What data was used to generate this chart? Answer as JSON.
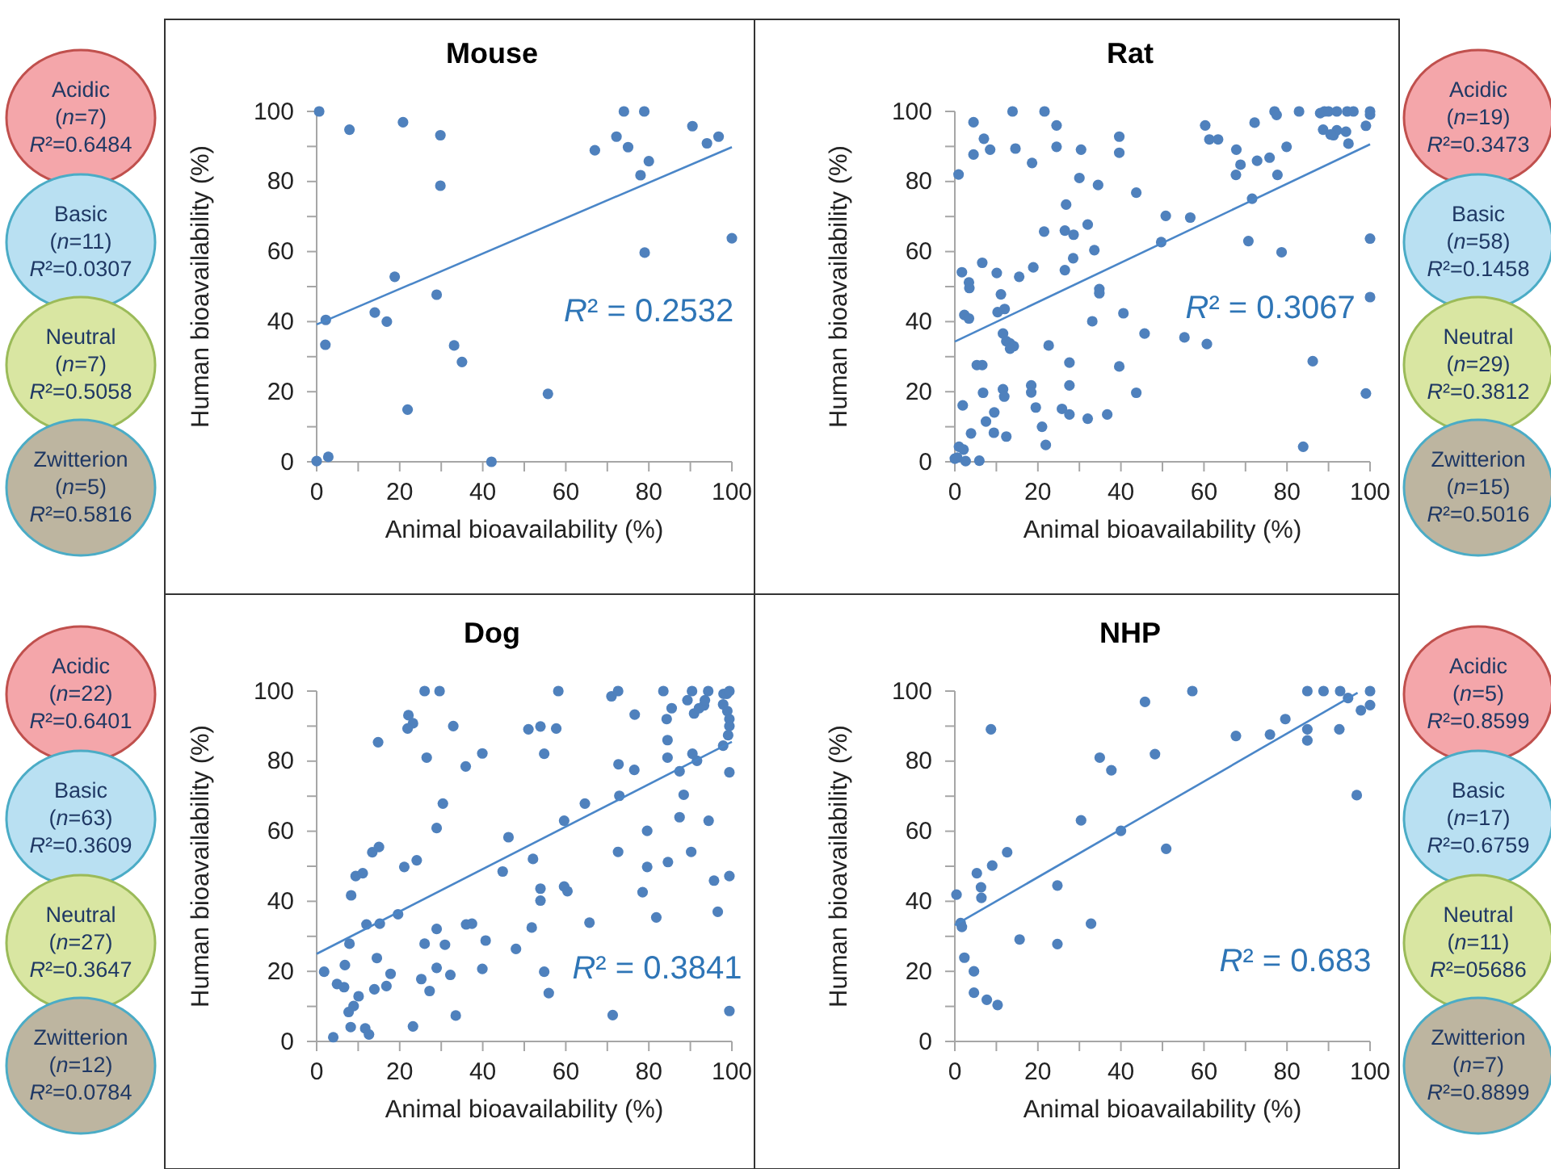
{
  "chart_data": [
    {
      "type": "scatter",
      "title": "Mouse",
      "xlabel": "Animal bioavailability (%)",
      "ylabel": "Human bioavailability (%)",
      "xlim": [
        0,
        100
      ],
      "ylim": [
        0,
        100
      ],
      "xticks": [
        0,
        {
          "value": 10,
          "label": null
        },
        20,
        {
          "value": 30,
          "label": null
        },
        40,
        {
          "value": 50,
          "label": null
        },
        60,
        {
          "value": 70,
          "label": null
        },
        80,
        {
          "value": 90,
          "label": null
        },
        100
      ],
      "yticks": [
        0,
        {
          "value": 10,
          "label": null
        },
        20,
        {
          "value": 30,
          "label": null
        },
        40,
        {
          "value": 50,
          "label": null
        },
        60,
        {
          "value": 70,
          "label": null
        },
        80,
        {
          "value": 90,
          "label": null
        },
        100
      ],
      "marker": "circle",
      "grid": false,
      "series": [
        {
          "color": "#4f81bd",
          "x": [
            0.6,
            7.9,
            20.8,
            29.8,
            29.8,
            67,
            72.2,
            74,
            75,
            78.9,
            80,
            78,
            79,
            90.5,
            94,
            96.8,
            100,
            18.8,
            14,
            16.9,
            2.2,
            2.1,
            28.9,
            33.1,
            35,
            21.9,
            55.7,
            0,
            2.8,
            42.1
          ],
          "values": [
            100,
            94.8,
            96.9,
            93.2,
            78.8,
            88.9,
            92.8,
            100,
            89.8,
            100,
            85.8,
            81.8,
            59.7,
            95.8,
            90.9,
            92.8,
            63.8,
            52.8,
            42.6,
            40,
            40.5,
            33.4,
            47.7,
            33.2,
            28.5,
            14.9,
            19.4,
            0.2,
            1.4,
            0
          ]
        },
        {
          "type": "line",
          "color": "#4a86c8",
          "line_style": "solid",
          "marker": "none",
          "x": [
            0,
            100
          ],
          "values": [
            39.2,
            89.8
          ]
        }
      ],
      "annotations": [
        "R² = 0.2532",
        "Acidic (n=7) R²=0.6484",
        "Basic (n=11) R²=0.0307",
        "Neutral (n=7) R²=0.5058",
        "Zwitterion (n=5) R²=0.5816"
      ]
    },
    {
      "type": "scatter",
      "title": "Rat",
      "xlabel": "Animal bioavailability (%)",
      "ylabel": "Human bioavailability (%)",
      "xlim": [
        0,
        100
      ],
      "ylim": [
        0,
        100
      ],
      "xticks": [
        0,
        {
          "value": 10,
          "label": null
        },
        20,
        {
          "value": 30,
          "label": null
        },
        40,
        {
          "value": 50,
          "label": null
        },
        60,
        {
          "value": 70,
          "label": null
        },
        80,
        {
          "value": 90,
          "label": null
        },
        100
      ],
      "yticks": [
        0,
        {
          "value": 10,
          "label": null
        },
        20,
        {
          "value": 30,
          "label": null
        },
        40,
        {
          "value": 50,
          "label": null
        },
        60,
        {
          "value": 70,
          "label": null
        },
        80,
        {
          "value": 90,
          "label": null
        },
        100
      ],
      "marker": "circle",
      "grid": false,
      "series": [
        {
          "color": "#4f81bd",
          "x": [
            13.9,
            21.6,
            77,
            77.5,
            82.9,
            88,
            89,
            90,
            92,
            94.5,
            96,
            100,
            4.5,
            0.9,
            7,
            4.5,
            8.5,
            14.6,
            18.6,
            24.5,
            24.5,
            30.4,
            30,
            34.5,
            39.6,
            39.6,
            43.7,
            26.8,
            21.5,
            26.5,
            28.6,
            32,
            33.6,
            28.5,
            26.5,
            18.9,
            15.5,
            6.6,
            10.1,
            1.7,
            3.4,
            3.5,
            11.1,
            34.8,
            34.8,
            10.3,
            12,
            2.3,
            3.4,
            11.6,
            12.4,
            13.3,
            14.2,
            13.3,
            22.6,
            33.1,
            40.6,
            49.7,
            50.8,
            56.7,
            45.7,
            55.3,
            60.7,
            60.3,
            61.3,
            63.4,
            72.2,
            67.8,
            68.8,
            67.7,
            72.8,
            75.8,
            77.7,
            79.9,
            71.6,
            70.7,
            78.7,
            88.7,
            91.2,
            92,
            90.5,
            94.2,
            94.8,
            99,
            100,
            100,
            100,
            99,
            86.2,
            83.9,
            5.3,
            6.6,
            1.9,
            6.8,
            11.6,
            11.9,
            3.9,
            7.5,
            9.5,
            9.4,
            12.4,
            18.4,
            18.4,
            19.5,
            21,
            21.9,
            27.6,
            27.6,
            25.8,
            27.6,
            32,
            36.7,
            39.6,
            43.7,
            1,
            2.1,
            0,
            0.6,
            2.6,
            5.9
          ],
          "values": [
            100,
            100,
            100,
            99,
            100,
            99.5,
            100,
            100,
            100,
            100,
            100,
            100,
            96.9,
            82,
            92.2,
            87.7,
            89.1,
            89.4,
            85.3,
            96,
            89.9,
            89.1,
            81,
            79,
            92.8,
            88.2,
            76.8,
            73.4,
            65.7,
            66,
            64.8,
            67.7,
            60.4,
            58.1,
            54.7,
            55.5,
            52.8,
            56.8,
            53.9,
            54.1,
            51.2,
            49.6,
            47.8,
            49.3,
            48.1,
            42.7,
            43.6,
            41.9,
            40.9,
            36.6,
            34.4,
            33.8,
            33,
            32.3,
            33.2,
            40.1,
            42.4,
            62.7,
            70.2,
            69.7,
            36.6,
            35.5,
            33.6,
            96,
            92,
            92,
            96.8,
            89.1,
            84.8,
            81.9,
            85.9,
            86.8,
            81.9,
            89.9,
            75.1,
            63,
            59.8,
            94.8,
            93.2,
            94.6,
            93.4,
            94.2,
            90.8,
            95.9,
            99.1,
            63.7,
            47,
            19.5,
            28.7,
            4.3,
            27.6,
            27.6,
            16.1,
            19.7,
            20.7,
            18.6,
            8.1,
            11.5,
            14.1,
            8.3,
            7.2,
            21.8,
            19.8,
            15.5,
            10,
            4.8,
            28.3,
            21.8,
            15.1,
            13.5,
            12.3,
            13.5,
            27.2,
            19.7,
            4.3,
            3.5,
            0.9,
            1.2,
            0.2,
            0.3
          ]
        },
        {
          "type": "line",
          "color": "#4a86c8",
          "line_style": "solid",
          "marker": "none",
          "x": [
            0,
            100
          ],
          "values": [
            34.3,
            90.6
          ]
        }
      ],
      "annotations": [
        "R² = 0.3067",
        "Acidic (n=19) R²=0.3473",
        "Basic (n=58) R²=0.1458",
        "Neutral (n=29) R²=0.3812",
        "Zwitterion (n=15) R²=0.5016"
      ]
    },
    {
      "type": "scatter",
      "title": "Dog",
      "xlabel": "Animal bioavailability (%)",
      "ylabel": "Human bioavailability (%)",
      "xlim": [
        0,
        100
      ],
      "ylim": [
        0,
        100
      ],
      "xticks": [
        0,
        {
          "value": 10,
          "label": null
        },
        20,
        {
          "value": 30,
          "label": null
        },
        40,
        {
          "value": 50,
          "label": null
        },
        60,
        {
          "value": 70,
          "label": null
        },
        80,
        {
          "value": 90,
          "label": null
        },
        100
      ],
      "yticks": [
        0,
        {
          "value": 10,
          "label": null
        },
        20,
        {
          "value": 30,
          "label": null
        },
        40,
        {
          "value": 50,
          "label": null
        },
        60,
        {
          "value": 70,
          "label": null
        },
        80,
        {
          "value": 90,
          "label": null
        },
        100
      ],
      "marker": "circle",
      "grid": false,
      "series": [
        {
          "color": "#4f81bd",
          "x": [
            26,
            29.6,
            58.2,
            71,
            72.6,
            83.5,
            90.4,
            94.3,
            98,
            98.8,
            99.4,
            22.1,
            23.2,
            21.9,
            14.8,
            32.9,
            26.5,
            35.9,
            39.9,
            51,
            53.9,
            57.7,
            54.8,
            76.6,
            72.7,
            76.5,
            84.3,
            85.5,
            89.3,
            90.9,
            92.1,
            93.3,
            93.5,
            97.9,
            98.9,
            99.4,
            99.4,
            99.1,
            84.5,
            84.5,
            90.5,
            91.6,
            87.4,
            88.4,
            87.4,
            94.4,
            97.9,
            99.4,
            64.6,
            72.9,
            59.6,
            79.6,
            72.6,
            90.2,
            84.6,
            79.6,
            78.5,
            81.8,
            95.7,
            99.4,
            96.6,
            99.4,
            71.3,
            30.4,
            28.9,
            46.2,
            44.8,
            52.1,
            59.6,
            60.4,
            53.9,
            53.9,
            51.8,
            65.7,
            21.1,
            24.1,
            13.4,
            15,
            9.4,
            11.1,
            8.3,
            19.6,
            12,
            15.2,
            36,
            37.4,
            28.9,
            7.9,
            26,
            30.9,
            40.7,
            48,
            14.5,
            6.8,
            1.8,
            17.8,
            10.1,
            16.8,
            13.9,
            4.9,
            6.6,
            8.9,
            7.7,
            8.2,
            11.7,
            12.6,
            4,
            23.2,
            25.2,
            27.2,
            28.9,
            32.2,
            33.5,
            39.9,
            54.8,
            55.9
          ],
          "values": [
            100,
            100,
            100,
            98.5,
            100,
            100,
            100,
            100,
            99.2,
            99.2,
            100,
            93.1,
            90.8,
            89.3,
            85.4,
            90,
            81,
            78.5,
            82.2,
            89.1,
            89.9,
            89.3,
            82.1,
            93.3,
            79.1,
            77.5,
            92,
            95.1,
            97.4,
            93.6,
            95.1,
            95.9,
            97.4,
            96.2,
            94.3,
            92,
            90,
            87.4,
            86,
            81,
            82.1,
            80.1,
            77.1,
            70.4,
            64,
            63,
            84.4,
            76.8,
            67.9,
            70.1,
            63,
            60.1,
            54.1,
            54.1,
            51.2,
            49.8,
            42.6,
            35.4,
            45.9,
            47.2,
            37,
            8.7,
            7.5,
            67.9,
            60.9,
            58.3,
            48.5,
            52.1,
            44.2,
            42.9,
            43.6,
            40.2,
            32.5,
            33.9,
            49.8,
            51.7,
            54,
            55.5,
            47.2,
            48,
            41.7,
            36.3,
            33.4,
            33.6,
            33.4,
            33.6,
            32.1,
            27.9,
            27.9,
            27.6,
            28.8,
            26.4,
            23.8,
            21.8,
            19.9,
            19.3,
            12.9,
            15.8,
            14.9,
            16.4,
            15.5,
            10.1,
            8.4,
            4.1,
            3.7,
            2,
            1.2,
            4.3,
            17.8,
            14.4,
            21,
            19,
            7.4,
            20.7,
            19.9,
            13.8
          ]
        },
        {
          "type": "line",
          "color": "#4a86c8",
          "line_style": "solid",
          "marker": "none",
          "x": [
            0,
            100
          ],
          "values": [
            25,
            85.5
          ]
        }
      ],
      "annotations": [
        "R² = 0.3841",
        "Acidic (n=22) R²=0.6401",
        "Basic (n=63) R²=0.3609",
        "Neutral (n=27) R²=0.3647",
        "Zwitterion (n=12) R²=0.0784"
      ]
    },
    {
      "type": "scatter",
      "title": "NHP",
      "xlabel": "Animal bioavailability (%)",
      "ylabel": "Human bioavailability (%)",
      "xlim": [
        0,
        100
      ],
      "ylim": [
        0,
        100
      ],
      "xticks": [
        0,
        {
          "value": 10,
          "label": null
        },
        20,
        {
          "value": 30,
          "label": null
        },
        40,
        {
          "value": 50,
          "label": null
        },
        60,
        {
          "value": 70,
          "label": null
        },
        80,
        {
          "value": 90,
          "label": null
        },
        100
      ],
      "yticks": [
        0,
        {
          "value": 10,
          "label": null
        },
        20,
        {
          "value": 30,
          "label": null
        },
        40,
        {
          "value": 50,
          "label": null
        },
        60,
        {
          "value": 70,
          "label": null
        },
        80,
        {
          "value": 90,
          "label": null
        },
        100
      ],
      "marker": "circle",
      "grid": false,
      "series": [
        {
          "color": "#4f81bd",
          "x": [
            0.4,
            1.4,
            1.7,
            2.3,
            4.6,
            4.6,
            5.3,
            6.3,
            6.4,
            7.7,
            8.7,
            9,
            10.3,
            12.6,
            15.6,
            24.7,
            24.7,
            30.4,
            32.8,
            34.9,
            37.7,
            40,
            45.8,
            48.2,
            50.9,
            57.2,
            67.7,
            75.9,
            79.6,
            84.9,
            84.9,
            84.9,
            88.8,
            92.8,
            92.6,
            94.7,
            96.8,
            97.8,
            100,
            100
          ],
          "values": [
            41.9,
            33.8,
            32.7,
            23.9,
            20,
            13.9,
            48,
            44,
            41,
            11.9,
            89.1,
            50.2,
            10.4,
            54,
            29.1,
            44.5,
            27.8,
            63.1,
            33.6,
            81,
            77.4,
            60.1,
            96.9,
            82,
            55,
            100,
            87.2,
            87.6,
            92,
            100,
            89.1,
            85.9,
            100,
            100,
            89.1,
            98,
            70.3,
            94.5,
            100,
            96
          ]
        },
        {
          "type": "line",
          "color": "#4a86c8",
          "line_style": "solid",
          "marker": "none",
          "x": [
            0,
            97
          ],
          "values": [
            33.2,
            99.5
          ]
        }
      ],
      "annotations": [
        "R² = 0.683",
        "Acidic (n=5) R²=0.8599",
        "Basic (n=17) R²=0.6759",
        "Neutral (n=11) R²=05686",
        "Zwitterion (n=7) R²=0.8899"
      ]
    }
  ]
}
